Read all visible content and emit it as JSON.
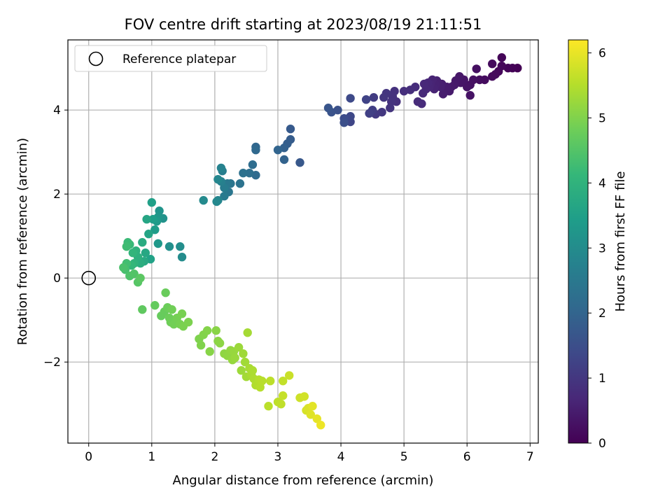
{
  "chart_data": {
    "type": "scatter",
    "title": "FOV centre drift starting at 2023/08/19 21:11:51",
    "xlabel": "Angular distance from reference (arcmin)",
    "ylabel": "Rotation from reference (arcmin)",
    "xlim": [
      -0.33,
      7.13
    ],
    "ylim": [
      -3.93,
      5.67
    ],
    "xticks": [
      0,
      1,
      2,
      3,
      4,
      5,
      6,
      7
    ],
    "yticks": [
      -2,
      0,
      2,
      4
    ],
    "ytick_labels": [
      "−2",
      "0",
      "2",
      "4"
    ],
    "grid": true,
    "legend": {
      "position": "top-left",
      "entries": [
        "Reference platepar"
      ]
    },
    "reference_point": {
      "x": 0,
      "y": 0,
      "label": "Reference platepar"
    },
    "colorbar": {
      "label": "Hours from first FF file",
      "range": [
        0,
        6.2
      ],
      "ticks": [
        0,
        1,
        2,
        3,
        4,
        5,
        6
      ],
      "colormap": "viridis",
      "stops": [
        "#440154",
        "#482878",
        "#3e4989",
        "#31688e",
        "#26828e",
        "#1f9e89",
        "#35b779",
        "#6ece58",
        "#b5de2b",
        "#fde725"
      ]
    },
    "points": [
      [
        6.8,
        5.0,
        0.0
      ],
      [
        6.72,
        5.0,
        0.03
      ],
      [
        6.65,
        5.0,
        0.06
      ],
      [
        6.55,
        5.25,
        0.08
      ],
      [
        6.55,
        5.05,
        0.1
      ],
      [
        6.5,
        4.92,
        0.12
      ],
      [
        6.45,
        4.85,
        0.14
      ],
      [
        6.4,
        4.8,
        0.16
      ],
      [
        6.4,
        5.1,
        0.18
      ],
      [
        6.28,
        4.72,
        0.2
      ],
      [
        6.2,
        4.72,
        0.22
      ],
      [
        6.15,
        4.98,
        0.24
      ],
      [
        6.1,
        4.72,
        0.26
      ],
      [
        6.05,
        4.6,
        0.28
      ],
      [
        6.05,
        4.35,
        0.3
      ],
      [
        6.0,
        4.55,
        0.32
      ],
      [
        5.95,
        4.72,
        0.34
      ],
      [
        5.9,
        4.65,
        0.36
      ],
      [
        5.88,
        4.8,
        0.38
      ],
      [
        5.82,
        4.7,
        0.4
      ],
      [
        5.8,
        4.6,
        0.42
      ],
      [
        5.75,
        4.55,
        0.44
      ],
      [
        5.72,
        4.45,
        0.46
      ],
      [
        5.68,
        4.55,
        0.48
      ],
      [
        5.62,
        4.38,
        0.5
      ],
      [
        5.6,
        4.62,
        0.52
      ],
      [
        5.58,
        4.55,
        0.54
      ],
      [
        5.52,
        4.7,
        0.56
      ],
      [
        5.5,
        4.6,
        0.58
      ],
      [
        5.48,
        4.5,
        0.6
      ],
      [
        5.45,
        4.72,
        0.62
      ],
      [
        5.42,
        4.62,
        0.64
      ],
      [
        5.4,
        4.55,
        0.66
      ],
      [
        5.38,
        4.65,
        0.68
      ],
      [
        5.35,
        4.5,
        0.7
      ],
      [
        5.32,
        4.62,
        0.72
      ],
      [
        5.3,
        4.4,
        0.74
      ],
      [
        5.28,
        4.15,
        0.76
      ],
      [
        5.22,
        4.2,
        0.78
      ],
      [
        5.18,
        4.55,
        0.8
      ],
      [
        5.1,
        4.48,
        0.82
      ],
      [
        5.0,
        4.45,
        0.84
      ],
      [
        4.88,
        4.2,
        0.86
      ],
      [
        4.85,
        4.45,
        0.88
      ],
      [
        4.82,
        4.32,
        0.9
      ],
      [
        4.8,
        4.2,
        0.92
      ],
      [
        4.78,
        4.05,
        0.94
      ],
      [
        4.72,
        4.4,
        0.96
      ],
      [
        4.68,
        4.3,
        0.98
      ],
      [
        4.65,
        3.95,
        1.0
      ],
      [
        4.55,
        3.9,
        1.05
      ],
      [
        4.52,
        4.3,
        1.1
      ],
      [
        4.5,
        4.0,
        1.15
      ],
      [
        4.45,
        3.92,
        1.2
      ],
      [
        4.4,
        4.25,
        1.25
      ],
      [
        4.15,
        3.72,
        1.3
      ],
      [
        4.15,
        3.85,
        1.35
      ],
      [
        4.15,
        4.28,
        1.4
      ],
      [
        4.05,
        3.8,
        1.45
      ],
      [
        4.05,
        3.7,
        1.5
      ],
      [
        3.95,
        4.0,
        1.55
      ],
      [
        3.85,
        3.95,
        1.6
      ],
      [
        3.8,
        4.05,
        1.65
      ],
      [
        3.35,
        2.75,
        1.7
      ],
      [
        3.2,
        3.55,
        1.75
      ],
      [
        3.2,
        3.3,
        1.8
      ],
      [
        3.15,
        3.2,
        1.85
      ],
      [
        3.1,
        3.1,
        1.9
      ],
      [
        3.1,
        2.82,
        1.95
      ],
      [
        3.0,
        3.05,
        2.0
      ],
      [
        2.65,
        3.12,
        2.05
      ],
      [
        2.65,
        3.05,
        2.1
      ],
      [
        2.65,
        2.45,
        2.15
      ],
      [
        2.6,
        2.7,
        2.2
      ],
      [
        2.55,
        2.5,
        2.25
      ],
      [
        2.45,
        2.5,
        2.3
      ],
      [
        2.4,
        2.25,
        2.35
      ],
      [
        2.25,
        2.25,
        2.4
      ],
      [
        2.22,
        2.05,
        2.45
      ],
      [
        2.2,
        2.25,
        2.5
      ],
      [
        2.15,
        1.95,
        2.55
      ],
      [
        2.15,
        2.15,
        2.6
      ],
      [
        2.12,
        2.55,
        2.65
      ],
      [
        2.1,
        2.3,
        2.7
      ],
      [
        2.1,
        2.62,
        2.75
      ],
      [
        2.05,
        1.85,
        2.8
      ],
      [
        2.05,
        2.35,
        2.85
      ],
      [
        2.03,
        1.82,
        2.9
      ],
      [
        1.82,
        1.85,
        2.95
      ],
      [
        1.48,
        0.5,
        3.0
      ],
      [
        1.45,
        0.75,
        3.05
      ],
      [
        1.28,
        0.75,
        3.1
      ],
      [
        1.18,
        1.42,
        3.15
      ],
      [
        1.12,
        1.6,
        3.2
      ],
      [
        1.1,
        1.45,
        3.25
      ],
      [
        1.1,
        0.82,
        3.3
      ],
      [
        1.08,
        1.35,
        3.35
      ],
      [
        1.05,
        1.15,
        3.4
      ],
      [
        1.02,
        1.4,
        3.45
      ],
      [
        1.0,
        1.8,
        3.5
      ],
      [
        0.98,
        0.45,
        3.55
      ],
      [
        0.95,
        1.05,
        3.6
      ],
      [
        0.92,
        1.4,
        3.65
      ],
      [
        0.9,
        0.6,
        3.7
      ],
      [
        0.88,
        0.4,
        3.75
      ],
      [
        0.85,
        0.85,
        3.8
      ],
      [
        0.82,
        0.35,
        3.85
      ],
      [
        0.78,
        0.5,
        3.9
      ],
      [
        0.75,
        0.65,
        3.95
      ],
      [
        0.72,
        0.35,
        4.0
      ],
      [
        0.7,
        0.6,
        4.05
      ],
      [
        0.68,
        0.3,
        4.1
      ],
      [
        0.65,
        0.8,
        4.15
      ],
      [
        0.62,
        0.85,
        4.2
      ],
      [
        0.6,
        0.75,
        4.25
      ],
      [
        0.6,
        0.35,
        4.3
      ],
      [
        0.58,
        0.2,
        4.35
      ],
      [
        0.55,
        0.25,
        4.4
      ],
      [
        0.65,
        0.05,
        4.45
      ],
      [
        0.72,
        0.1,
        4.5
      ],
      [
        0.78,
        -0.1,
        4.55
      ],
      [
        0.82,
        0.0,
        4.6
      ],
      [
        0.85,
        -0.75,
        4.65
      ],
      [
        1.05,
        -0.65,
        4.7
      ],
      [
        1.15,
        -0.9,
        4.72
      ],
      [
        1.2,
        -0.8,
        4.74
      ],
      [
        1.22,
        -0.35,
        4.76
      ],
      [
        1.25,
        -0.7,
        4.78
      ],
      [
        1.28,
        -0.95,
        4.8
      ],
      [
        1.3,
        -1.05,
        4.82
      ],
      [
        1.32,
        -0.75,
        4.84
      ],
      [
        1.35,
        -1.1,
        4.86
      ],
      [
        1.4,
        -0.95,
        4.88
      ],
      [
        1.45,
        -1.1,
        4.9
      ],
      [
        1.48,
        -0.85,
        4.92
      ],
      [
        1.5,
        -1.15,
        4.94
      ],
      [
        1.58,
        -1.05,
        4.96
      ],
      [
        1.75,
        -1.45,
        4.98
      ],
      [
        1.78,
        -1.6,
        5.0
      ],
      [
        1.82,
        -1.35,
        5.02
      ],
      [
        1.88,
        -1.25,
        5.04
      ],
      [
        1.92,
        -1.75,
        5.06
      ],
      [
        2.02,
        -1.25,
        5.08
      ],
      [
        2.05,
        -1.5,
        5.1
      ],
      [
        2.08,
        -1.55,
        5.12
      ],
      [
        2.15,
        -1.8,
        5.14
      ],
      [
        2.2,
        -1.85,
        5.16
      ],
      [
        2.25,
        -1.72,
        5.18
      ],
      [
        2.28,
        -1.95,
        5.2
      ],
      [
        2.3,
        -1.75,
        5.22
      ],
      [
        2.32,
        -1.9,
        5.24
      ],
      [
        2.38,
        -1.65,
        5.26
      ],
      [
        2.42,
        -2.2,
        5.28
      ],
      [
        2.45,
        -1.8,
        5.3
      ],
      [
        2.48,
        -2.0,
        5.32
      ],
      [
        2.5,
        -2.35,
        5.34
      ],
      [
        2.52,
        -1.3,
        5.36
      ],
      [
        2.55,
        -2.15,
        5.38
      ],
      [
        2.58,
        -2.3,
        5.4
      ],
      [
        2.6,
        -2.2,
        5.42
      ],
      [
        2.62,
        -2.4,
        5.44
      ],
      [
        2.65,
        -2.55,
        5.46
      ],
      [
        2.68,
        -2.5,
        5.48
      ],
      [
        2.7,
        -2.42,
        5.5
      ],
      [
        2.72,
        -2.6,
        5.52
      ],
      [
        2.75,
        -2.45,
        5.54
      ],
      [
        2.85,
        -3.05,
        5.56
      ],
      [
        2.88,
        -2.45,
        5.58
      ],
      [
        3.0,
        -2.95,
        5.6
      ],
      [
        3.05,
        -3.0,
        5.62
      ],
      [
        3.08,
        -2.45,
        5.64
      ],
      [
        3.08,
        -2.8,
        5.66
      ],
      [
        3.18,
        -2.32,
        5.7
      ],
      [
        3.35,
        -2.85,
        5.74
      ],
      [
        3.42,
        -2.82,
        5.78
      ],
      [
        3.45,
        -3.15,
        5.82
      ],
      [
        3.48,
        -3.1,
        5.86
      ],
      [
        3.52,
        -3.25,
        5.9
      ],
      [
        3.55,
        -3.05,
        5.94
      ],
      [
        3.62,
        -3.35,
        5.98
      ],
      [
        3.68,
        -3.5,
        6.05
      ]
    ]
  }
}
